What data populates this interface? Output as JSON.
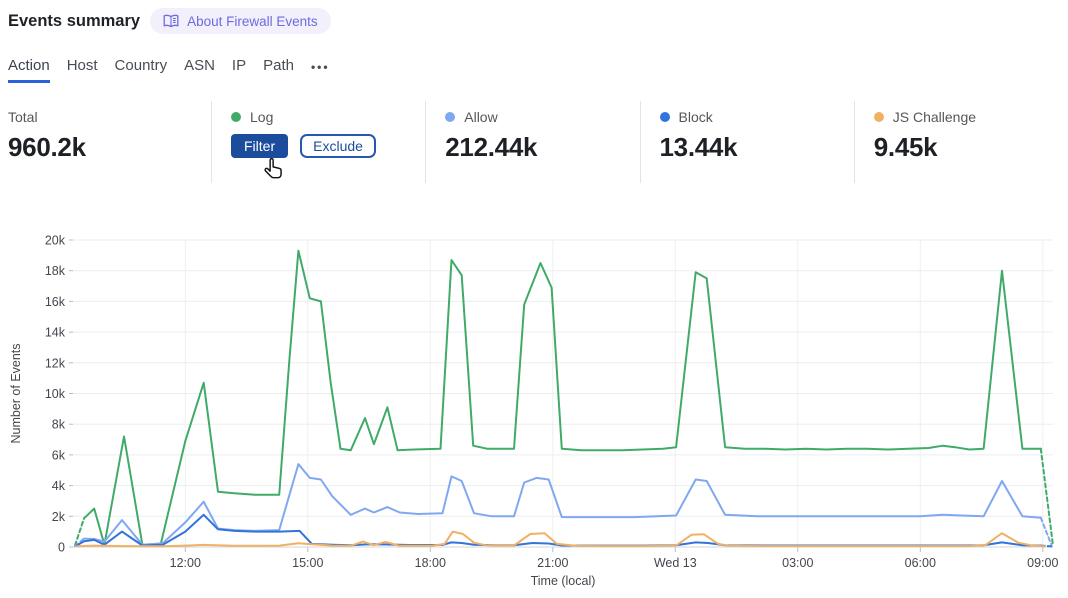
{
  "header": {
    "title": "Events summary",
    "about_label": "About Firewall Events"
  },
  "tabs": {
    "items": [
      {
        "label": "Action",
        "active": true
      },
      {
        "label": "Host"
      },
      {
        "label": "Country"
      },
      {
        "label": "ASN"
      },
      {
        "label": "IP"
      },
      {
        "label": "Path"
      }
    ],
    "more_label": "•••"
  },
  "stats": {
    "total": {
      "label": "Total",
      "value": "960.2k"
    },
    "log": {
      "label": "Log",
      "dot_color": "#40ab68",
      "filter_label": "Filter",
      "exclude_label": "Exclude"
    },
    "allow": {
      "label": "Allow",
      "value": "212.44k",
      "dot_color": "#7fa8f1"
    },
    "block": {
      "label": "Block",
      "value": "13.44k",
      "dot_color": "#3273dc"
    },
    "js_challenge": {
      "label": "JS Challenge",
      "value": "9.45k",
      "dot_color": "#f0b163"
    }
  },
  "chart_data": {
    "type": "line",
    "title": "",
    "xlabel": "Time (local)",
    "ylabel": "Number of Events",
    "ylim": [
      0,
      20000
    ],
    "x_domain_hours": [
      9.25,
      33.25
    ],
    "grid": true,
    "legend_position": "stat cards above chart",
    "yticks": [
      {
        "v": 0,
        "label": "0"
      },
      {
        "v": 2000,
        "label": "2k"
      },
      {
        "v": 4000,
        "label": "4k"
      },
      {
        "v": 6000,
        "label": "6k"
      },
      {
        "v": 8000,
        "label": "8k"
      },
      {
        "v": 10000,
        "label": "10k"
      },
      {
        "v": 12000,
        "label": "12k"
      },
      {
        "v": 14000,
        "label": "14k"
      },
      {
        "v": 16000,
        "label": "16k"
      },
      {
        "v": 18000,
        "label": "18k"
      },
      {
        "v": 20000,
        "label": "20k"
      }
    ],
    "xticks": [
      {
        "t": 12,
        "label": "12:00"
      },
      {
        "t": 15,
        "label": "15:00"
      },
      {
        "t": 18,
        "label": "18:00"
      },
      {
        "t": 21,
        "label": "21:00"
      },
      {
        "t": 24,
        "label": "Wed 13"
      },
      {
        "t": 27,
        "label": "03:00"
      },
      {
        "t": 30,
        "label": "06:00"
      },
      {
        "t": 33,
        "label": "09:00"
      }
    ],
    "series": [
      {
        "name": "Log",
        "color": "#40ab68",
        "segments": [
          {
            "dashed": true,
            "points": [
              [
                9.3,
                100
              ],
              [
                9.52,
                1870
              ]
            ]
          },
          {
            "dashed": false,
            "points": [
              [
                9.52,
                1870
              ],
              [
                9.77,
                2500
              ],
              [
                10.02,
                150
              ],
              [
                10.5,
                7200
              ],
              [
                10.95,
                150
              ],
              [
                11.4,
                200
              ],
              [
                12,
                6900
              ],
              [
                12.45,
                10700
              ],
              [
                12.8,
                3600
              ],
              [
                13.2,
                3500
              ],
              [
                13.7,
                3400
              ],
              [
                14.3,
                3400
              ],
              [
                14.55,
                12200
              ],
              [
                14.77,
                19300
              ],
              [
                15.05,
                16200
              ],
              [
                15.32,
                16000
              ],
              [
                15.56,
                10700
              ],
              [
                15.8,
                6400
              ],
              [
                16.05,
                6300
              ],
              [
                16.4,
                8400
              ],
              [
                16.62,
                6700
              ],
              [
                16.95,
                9100
              ],
              [
                17.2,
                6300
              ],
              [
                17.6,
                6350
              ],
              [
                18.25,
                6400
              ],
              [
                18.52,
                18700
              ],
              [
                18.77,
                17700
              ],
              [
                19.05,
                6600
              ],
              [
                19.4,
                6400
              ],
              [
                20.05,
                6400
              ],
              [
                20.3,
                15800
              ],
              [
                20.7,
                18500
              ],
              [
                20.97,
                16900
              ],
              [
                21.22,
                6400
              ],
              [
                21.7,
                6300
              ],
              [
                22.2,
                6300
              ],
              [
                22.7,
                6300
              ],
              [
                23.2,
                6350
              ],
              [
                23.7,
                6400
              ],
              [
                24.02,
                6500
              ],
              [
                24.5,
                17900
              ],
              [
                24.77,
                17500
              ],
              [
                25.22,
                6500
              ],
              [
                25.7,
                6400
              ],
              [
                26.2,
                6400
              ],
              [
                26.7,
                6350
              ],
              [
                27.2,
                6400
              ],
              [
                27.7,
                6350
              ],
              [
                28.2,
                6400
              ],
              [
                28.7,
                6400
              ],
              [
                29.2,
                6350
              ],
              [
                29.7,
                6400
              ],
              [
                30.2,
                6450
              ],
              [
                30.55,
                6600
              ],
              [
                30.85,
                6500
              ],
              [
                31.2,
                6350
              ],
              [
                31.55,
                6400
              ],
              [
                32,
                18000
              ],
              [
                32.5,
                6400
              ],
              [
                32.95,
                6400
              ]
            ]
          },
          {
            "dashed": true,
            "points": [
              [
                32.95,
                6400
              ],
              [
                33.25,
                100
              ]
            ]
          }
        ]
      },
      {
        "name": "Allow",
        "color": "#7fa8f1",
        "segments": [
          {
            "dashed": true,
            "points": [
              [
                9.3,
                60
              ],
              [
                9.52,
                550
              ]
            ]
          },
          {
            "dashed": false,
            "points": [
              [
                9.52,
                550
              ],
              [
                9.77,
                520
              ],
              [
                10.02,
                350
              ],
              [
                10.45,
                1750
              ],
              [
                10.95,
                150
              ],
              [
                11.45,
                250
              ],
              [
                12,
                1600
              ],
              [
                12.45,
                2950
              ],
              [
                12.8,
                1200
              ],
              [
                13.2,
                1100
              ],
              [
                13.7,
                1050
              ],
              [
                14.3,
                1100
              ],
              [
                14.77,
                5400
              ],
              [
                15.05,
                4500
              ],
              [
                15.32,
                4400
              ],
              [
                15.6,
                3300
              ],
              [
                16.05,
                2100
              ],
              [
                16.4,
                2500
              ],
              [
                16.62,
                2250
              ],
              [
                16.95,
                2600
              ],
              [
                17.25,
                2250
              ],
              [
                17.7,
                2150
              ],
              [
                18.3,
                2200
              ],
              [
                18.52,
                4600
              ],
              [
                18.77,
                4300
              ],
              [
                19.07,
                2200
              ],
              [
                19.5,
                2000
              ],
              [
                20.05,
                2000
              ],
              [
                20.3,
                4200
              ],
              [
                20.6,
                4500
              ],
              [
                20.9,
                4400
              ],
              [
                21.22,
                1950
              ],
              [
                22,
                1950
              ],
              [
                23,
                1950
              ],
              [
                24.02,
                2050
              ],
              [
                24.5,
                4400
              ],
              [
                24.77,
                4300
              ],
              [
                25.22,
                2100
              ],
              [
                26,
                2000
              ],
              [
                27,
                2000
              ],
              [
                28,
                2000
              ],
              [
                29,
                2000
              ],
              [
                30,
                2000
              ],
              [
                30.55,
                2100
              ],
              [
                31,
                2050
              ],
              [
                31.55,
                2000
              ],
              [
                32,
                4300
              ],
              [
                32.5,
                2000
              ],
              [
                32.95,
                1900
              ]
            ]
          },
          {
            "dashed": true,
            "points": [
              [
                32.95,
                1900
              ],
              [
                33.22,
                80
              ]
            ]
          }
        ]
      },
      {
        "name": "Block",
        "color": "#3273dc",
        "segments": [
          {
            "dashed": false,
            "points": [
              [
                9.35,
                120
              ],
              [
                9.52,
                370
              ],
              [
                9.77,
                460
              ],
              [
                10.02,
                150
              ],
              [
                10.45,
                1000
              ],
              [
                10.95,
                100
              ],
              [
                11.45,
                150
              ],
              [
                12,
                1000
              ],
              [
                12.45,
                2100
              ],
              [
                12.8,
                1150
              ],
              [
                13.2,
                1050
              ],
              [
                13.7,
                1000
              ],
              [
                14.3,
                1000
              ],
              [
                14.8,
                1050
              ],
              [
                15.1,
                200
              ],
              [
                15.6,
                150
              ],
              [
                16.05,
                120
              ],
              [
                16.5,
                180
              ],
              [
                16.95,
                160
              ],
              [
                17.5,
                130
              ],
              [
                18.3,
                140
              ],
              [
                18.52,
                300
              ],
              [
                18.77,
                260
              ],
              [
                19.07,
                150
              ],
              [
                19.6,
                120
              ],
              [
                20.05,
                120
              ],
              [
                20.5,
                260
              ],
              [
                20.9,
                230
              ],
              [
                21.22,
                100
              ],
              [
                22.2,
                90
              ],
              [
                23.2,
                90
              ],
              [
                24.02,
                110
              ],
              [
                24.5,
                300
              ],
              [
                24.8,
                260
              ],
              [
                25.22,
                110
              ],
              [
                26.2,
                100
              ],
              [
                27.2,
                100
              ],
              [
                28.2,
                100
              ],
              [
                29.2,
                100
              ],
              [
                30.2,
                100
              ],
              [
                31.2,
                100
              ],
              [
                31.55,
                120
              ],
              [
                32,
                300
              ],
              [
                32.5,
                110
              ],
              [
                32.95,
                90
              ]
            ]
          },
          {
            "dashed": true,
            "points": [
              [
                32.95,
                90
              ],
              [
                33.2,
                40
              ]
            ]
          }
        ]
      },
      {
        "name": "JS Challenge",
        "color": "#f0b163",
        "segments": [
          {
            "dashed": false,
            "points": [
              [
                9.35,
                50
              ],
              [
                9.77,
                90
              ],
              [
                10.5,
                60
              ],
              [
                11.45,
                50
              ],
              [
                12,
                90
              ],
              [
                12.45,
                140
              ],
              [
                13.2,
                80
              ],
              [
                14.3,
                90
              ],
              [
                14.77,
                240
              ],
              [
                15.1,
                180
              ],
              [
                15.6,
                90
              ],
              [
                16.05,
                80
              ],
              [
                16.35,
                350
              ],
              [
                16.62,
                120
              ],
              [
                16.9,
                330
              ],
              [
                17.25,
                80
              ],
              [
                18.05,
                80
              ],
              [
                18.35,
                200
              ],
              [
                18.55,
                1000
              ],
              [
                18.8,
                850
              ],
              [
                19.07,
                280
              ],
              [
                19.35,
                120
              ],
              [
                20.05,
                100
              ],
              [
                20.45,
                850
              ],
              [
                20.8,
                900
              ],
              [
                21.1,
                200
              ],
              [
                21.6,
                70
              ],
              [
                22.2,
                60
              ],
              [
                23.2,
                60
              ],
              [
                24.02,
                90
              ],
              [
                24.4,
                800
              ],
              [
                24.7,
                830
              ],
              [
                25.05,
                200
              ],
              [
                25.3,
                90
              ],
              [
                26.2,
                60
              ],
              [
                27.2,
                60
              ],
              [
                28.2,
                60
              ],
              [
                29.2,
                60
              ],
              [
                30.2,
                60
              ],
              [
                31.2,
                60
              ],
              [
                31.6,
                140
              ],
              [
                32,
                900
              ],
              [
                32.4,
                280
              ],
              [
                32.75,
                90
              ],
              [
                33.05,
                40
              ]
            ]
          }
        ]
      }
    ]
  }
}
